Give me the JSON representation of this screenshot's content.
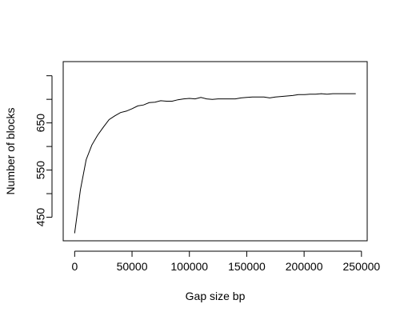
{
  "chart_data": {
    "type": "line",
    "title": "",
    "xlabel": "Gap size bp",
    "ylabel": "Number of blocks",
    "xlim": [
      -10000,
      255000
    ],
    "ylim": [
      400,
      780
    ],
    "x_ticks": [
      0,
      50000,
      100000,
      150000,
      200000,
      250000
    ],
    "x_tick_labels": [
      "0",
      "50000",
      "100000",
      "150000",
      "200000",
      "250000"
    ],
    "y_ticks": [
      450,
      500,
      550,
      600,
      650,
      700,
      750
    ],
    "y_tick_labels": [
      "450",
      "",
      "550",
      "",
      "650",
      "",
      ""
    ],
    "grid": false,
    "series": [
      {
        "color": "#000000",
        "x": [
          0,
          5000,
          10000,
          15000,
          20000,
          25000,
          30000,
          35000,
          40000,
          45000,
          50000,
          55000,
          60000,
          65000,
          70000,
          75000,
          80000,
          85000,
          90000,
          95000,
          100000,
          105000,
          110000,
          115000,
          120000,
          125000,
          130000,
          135000,
          140000,
          145000,
          150000,
          155000,
          160000,
          165000,
          170000,
          175000,
          180000,
          185000,
          190000,
          195000,
          200000,
          205000,
          210000,
          215000,
          220000,
          225000,
          230000,
          235000,
          240000,
          245000
        ],
        "y": [
          416,
          508,
          572,
          603,
          624,
          641,
          657,
          665,
          672,
          675,
          680,
          686,
          688,
          693,
          694,
          697,
          696,
          696,
          699,
          701,
          702,
          701,
          704,
          701,
          700,
          701,
          701,
          701,
          701,
          703,
          704,
          705,
          705,
          705,
          703,
          705,
          706,
          707,
          708,
          710,
          710,
          711,
          711,
          712,
          711,
          712,
          712,
          712,
          712,
          712
        ]
      }
    ]
  }
}
